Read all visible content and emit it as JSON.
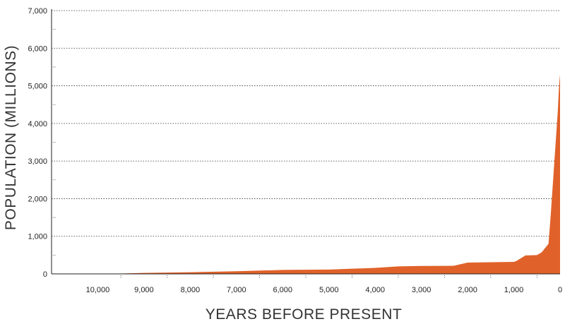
{
  "chart_data": {
    "type": "area",
    "title": "",
    "xlabel": "YEARS BEFORE PRESENT",
    "ylabel": "POPULATION (MILLIONS)",
    "x_reversed": true,
    "xlim": [
      11000,
      0
    ],
    "ylim": [
      0,
      7000
    ],
    "grid": true,
    "legend": "none",
    "x_tick_values": [
      10000,
      9000,
      8000,
      7000,
      6000,
      5000,
      4000,
      3000,
      2000,
      1000,
      0
    ],
    "x_tick_labels": [
      "10,000",
      "9,000",
      "8,000",
      "7,000",
      "6,000",
      "5,000",
      "4,000",
      "3,000",
      "2,000",
      "1,000",
      "0"
    ],
    "y_tick_values": [
      0,
      1000,
      2000,
      3000,
      4000,
      5000,
      6000,
      7000
    ],
    "y_tick_labels": [
      "0",
      "1,000",
      "2,000",
      "3,000",
      "4,000",
      "5,000",
      "6,000",
      "7,000"
    ],
    "fill_color": "#e0622a",
    "series": [
      {
        "x": [
          11000,
          10000,
          9500,
          9000,
          8000,
          7000,
          6000,
          5000,
          4000,
          3500,
          3000,
          2300,
          2000,
          1000,
          950,
          800,
          750,
          500,
          400,
          250,
          200,
          150,
          100,
          50,
          30,
          15,
          0
        ],
        "values": [
          5,
          8,
          10,
          25,
          45,
          70,
          105,
          115,
          160,
          200,
          210,
          215,
          300,
          320,
          340,
          450,
          490,
          500,
          570,
          800,
          1600,
          2500,
          3400,
          4300,
          4800,
          5100,
          5300
        ]
      }
    ]
  }
}
